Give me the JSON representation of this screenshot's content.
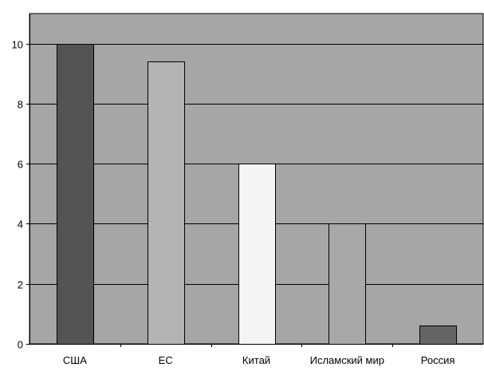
{
  "chart_data": {
    "type": "bar",
    "categories": [
      "США",
      "ЕС",
      "Китай",
      "Исламский мир",
      "Россия"
    ],
    "values": [
      10,
      9.4,
      6,
      4,
      0.6
    ],
    "bar_colors": [
      "#545454",
      "#b4b4b4",
      "#f4f4f4",
      "#a8a8a8",
      "#646464"
    ],
    "ylim": [
      0,
      11
    ],
    "yticks": [
      0,
      2,
      4,
      6,
      8,
      10
    ],
    "grid": true,
    "legend": "none",
    "title": "",
    "xlabel": "",
    "ylabel": ""
  },
  "colors": {
    "plot_background": "#a6a6a6",
    "gridline": "#000000",
    "bar_outline": "#000000",
    "page_background": "#ffffff"
  }
}
